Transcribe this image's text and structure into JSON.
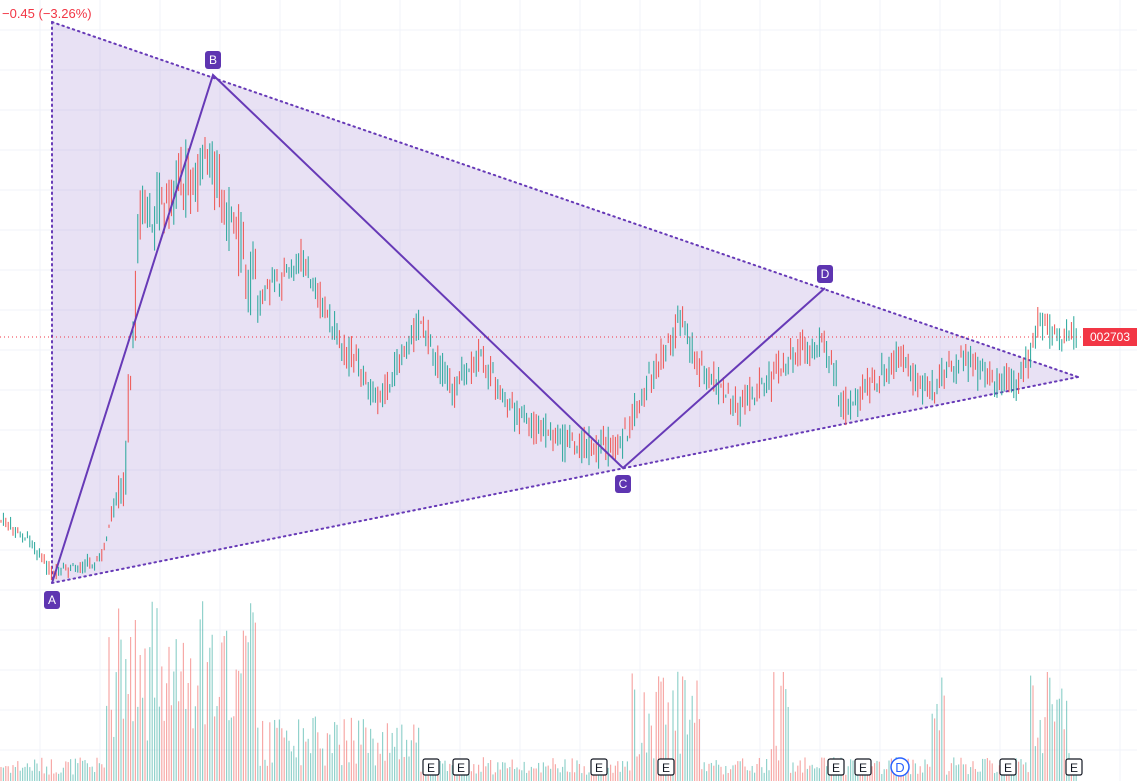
{
  "header": {
    "change_text": "−0.45 (−3.26%)"
  },
  "price_scale": {
    "last_price_label": "002703"
  },
  "colors": {
    "up": "#26a69a",
    "down": "#ef5350",
    "pattern_fill": "#b39ddb",
    "pattern_line": "#673ab7",
    "point_label_bg": "#5e35b1",
    "price_line": "#f23645",
    "grid": "#f0f3fa",
    "event_dividend": "#2962ff"
  },
  "chart_data": {
    "type": "candlestick",
    "title": "",
    "grid": true,
    "series": [
      {
        "name": "price",
        "kind": "candlestick"
      },
      {
        "name": "volume",
        "kind": "bar"
      }
    ],
    "last_price_line": true,
    "pattern": {
      "kind": "ABCD pattern with triangle",
      "points": [
        {
          "label": "A"
        },
        {
          "label": "B"
        },
        {
          "label": "C"
        },
        {
          "label": "D"
        }
      ]
    },
    "event_markers": [
      "E",
      "E",
      "E",
      "E",
      "E",
      "E",
      "D",
      "E",
      "E"
    ]
  }
}
